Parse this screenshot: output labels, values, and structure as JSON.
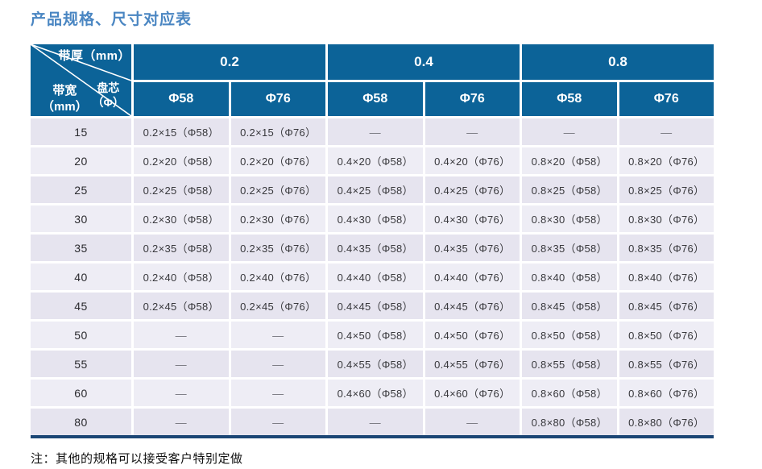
{
  "page": {
    "title": "产品规格、尺寸对应表",
    "note": "注：其他的规格可以接受客户特别定做"
  },
  "colors": {
    "header_bg": "#0c6398",
    "row_dark": "#e6e4ef",
    "row_light": "#eeedf5",
    "bottom_bar": "#1b4675",
    "title_blue": "#4a86c2",
    "dash_gray": "#77777f",
    "cell_text": "#38383c"
  },
  "table": {
    "corner": {
      "thickness_label": "带厚（mm）",
      "core_label_line1": "盘芯",
      "core_label_line2": "（Φ）",
      "width_label_line1": "带宽",
      "width_label_line2": "（mm）"
    },
    "thickness_groups": [
      "0.2",
      "0.4",
      "0.8"
    ],
    "core_headers": [
      "Φ58",
      "Φ76",
      "Φ58",
      "Φ76",
      "Φ58",
      "Φ76"
    ],
    "rows": [
      {
        "width": "15",
        "cells": [
          "0.2×15（Φ58）",
          "0.2×15（Φ76）",
          "—",
          "—",
          "—",
          "—"
        ]
      },
      {
        "width": "20",
        "cells": [
          "0.2×20（Φ58）",
          "0.2×20（Φ76）",
          "0.4×20（Φ58）",
          "0.4×20（Φ76）",
          "0.8×20（Φ58）",
          "0.8×20（Φ76）"
        ]
      },
      {
        "width": "25",
        "cells": [
          "0.2×25（Φ58）",
          "0.2×25（Φ76）",
          "0.4×25（Φ58）",
          "0.4×25（Φ76）",
          "0.8×25（Φ58）",
          "0.8×25（Φ76）"
        ]
      },
      {
        "width": "30",
        "cells": [
          "0.2×30（Φ58）",
          "0.2×30（Φ76）",
          "0.4×30（Φ58）",
          "0.4×30（Φ76）",
          "0.8×30（Φ58）",
          "0.8×30（Φ76）"
        ]
      },
      {
        "width": "35",
        "cells": [
          "0.2×35（Φ58）",
          "0.2×35（Φ76）",
          "0.4×35（Φ58）",
          "0.4×35（Φ76）",
          "0.8×35（Φ58）",
          "0.8×35（Φ76）"
        ]
      },
      {
        "width": "40",
        "cells": [
          "0.2×40（Φ58）",
          "0.2×40（Φ76）",
          "0.4×40（Φ58）",
          "0.4×40（Φ76）",
          "0.8×40（Φ58）",
          "0.8×40（Φ76）"
        ]
      },
      {
        "width": "45",
        "cells": [
          "0.2×45（Φ58）",
          "0.2×45（Φ76）",
          "0.4×45（Φ58）",
          "0.4×45（Φ76）",
          "0.8×45（Φ58）",
          "0.8×45（Φ76）"
        ]
      },
      {
        "width": "50",
        "cells": [
          "—",
          "—",
          "0.4×50（Φ58）",
          "0.4×50（Φ76）",
          "0.8×50（Φ58）",
          "0.8×50（Φ76）"
        ]
      },
      {
        "width": "55",
        "cells": [
          "—",
          "—",
          "0.4×55（Φ58）",
          "0.4×55（Φ76）",
          "0.8×55（Φ58）",
          "0.8×55（Φ76）"
        ]
      },
      {
        "width": "60",
        "cells": [
          "—",
          "—",
          "0.4×60（Φ58）",
          "0.4×60（Φ76）",
          "0.8×60（Φ58）",
          "0.8×60（Φ76）"
        ]
      },
      {
        "width": "80",
        "cells": [
          "—",
          "—",
          "—",
          "—",
          "0.8×80（Φ58）",
          "0.8×80（Φ76）"
        ]
      }
    ]
  }
}
